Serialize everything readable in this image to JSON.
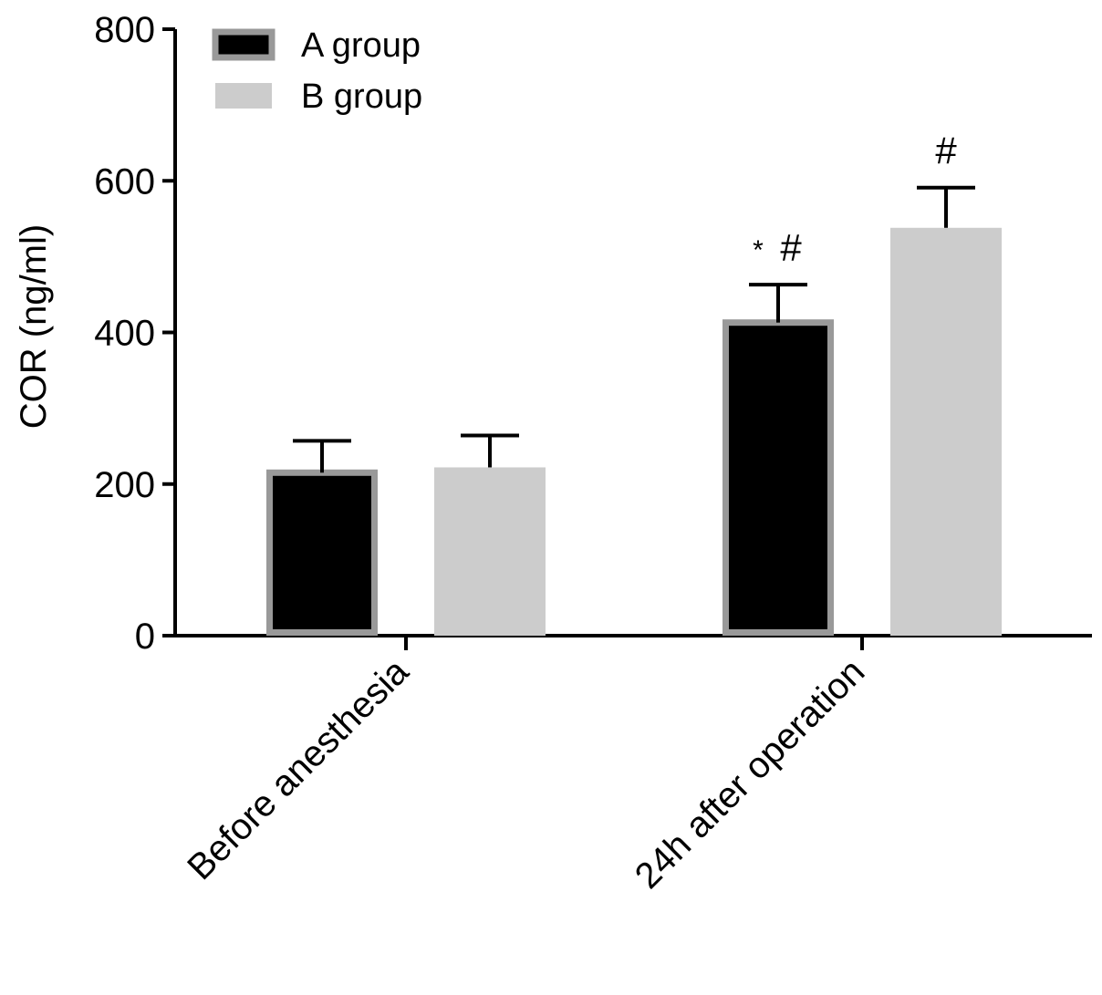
{
  "chart_data": {
    "type": "bar",
    "categories": [
      "Before anesthesia",
      "24h after operation"
    ],
    "series": [
      {
        "name": "A group",
        "values": [
          215,
          413
        ],
        "errors": [
          42,
          50
        ],
        "color": "#000000",
        "border": "#999999"
      },
      {
        "name": "B group",
        "values": [
          222,
          538
        ],
        "errors": [
          42,
          53
        ],
        "color": "#cccccc",
        "border": "#cccccc"
      }
    ],
    "annotations": [
      {
        "category": 1,
        "series": 0,
        "star": "*",
        "hash": "#"
      },
      {
        "category": 1,
        "series": 1,
        "star": "",
        "hash": "#"
      }
    ],
    "ylabel": "COR (ng/ml)",
    "xlabel": "",
    "title": "",
    "ylim": [
      0,
      800
    ],
    "yticks": [
      0,
      200,
      400,
      600,
      800
    ],
    "grid": false,
    "legend_position": "top-left"
  }
}
